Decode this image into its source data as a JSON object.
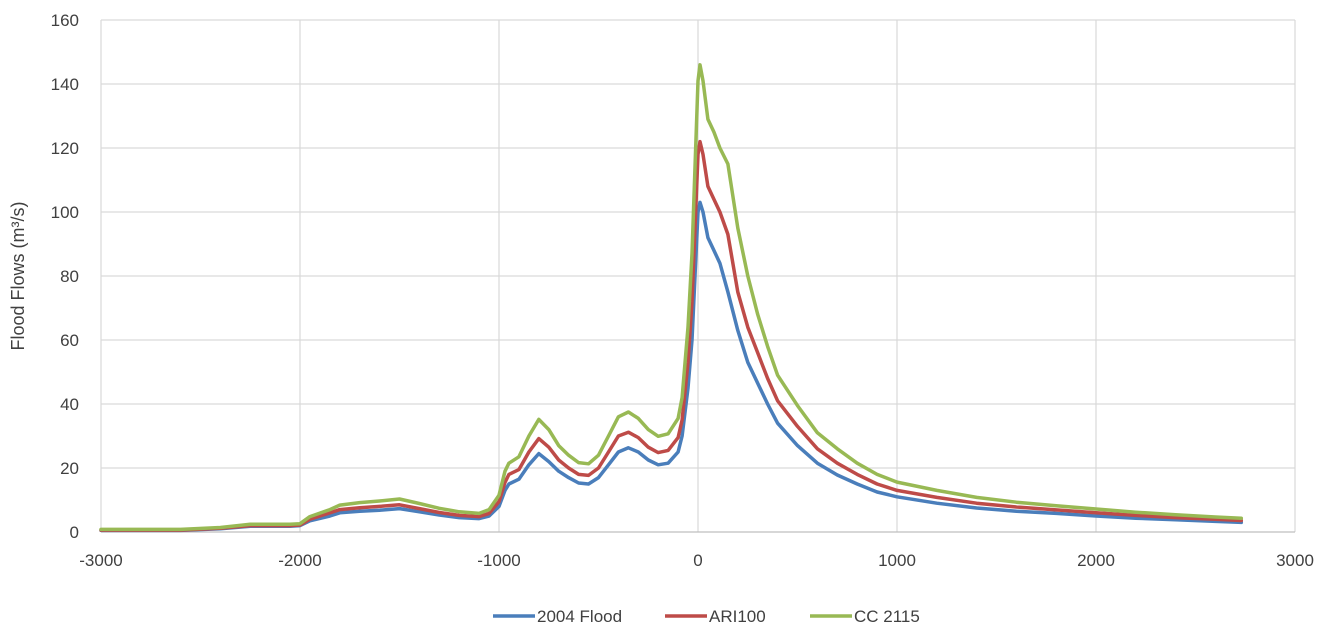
{
  "chart_data": {
    "type": "line",
    "title": "",
    "xlabel": "",
    "ylabel": "Flood Flows (m³/s)",
    "xlim": [
      -3000,
      3000
    ],
    "ylim": [
      0,
      160
    ],
    "x_ticks": [
      -3000,
      -2000,
      -1000,
      0,
      1000,
      2000,
      3000
    ],
    "y_ticks": [
      0,
      20,
      40,
      60,
      80,
      100,
      120,
      140,
      160
    ],
    "grid": true,
    "legend_position": "bottom",
    "series": [
      {
        "name": "2004 Flood",
        "color": "#4a7ebb",
        "points": [
          [
            -3000,
            0.5
          ],
          [
            -2600,
            0.5
          ],
          [
            -2400,
            1
          ],
          [
            -2250,
            1.8
          ],
          [
            -2050,
            1.8
          ],
          [
            -2000,
            2
          ],
          [
            -1950,
            3.5
          ],
          [
            -1850,
            5
          ],
          [
            -1800,
            6
          ],
          [
            -1700,
            6.5
          ],
          [
            -1600,
            6.8
          ],
          [
            -1500,
            7.3
          ],
          [
            -1400,
            6.3
          ],
          [
            -1300,
            5.3
          ],
          [
            -1200,
            4.5
          ],
          [
            -1100,
            4.2
          ],
          [
            -1050,
            5
          ],
          [
            -1000,
            8
          ],
          [
            -970,
            13
          ],
          [
            -950,
            15
          ],
          [
            -900,
            16.5
          ],
          [
            -850,
            21
          ],
          [
            -800,
            24.5
          ],
          [
            -750,
            22
          ],
          [
            -700,
            19
          ],
          [
            -650,
            17
          ],
          [
            -600,
            15.3
          ],
          [
            -550,
            15
          ],
          [
            -500,
            17
          ],
          [
            -450,
            21
          ],
          [
            -400,
            25
          ],
          [
            -350,
            26.3
          ],
          [
            -300,
            25
          ],
          [
            -250,
            22.5
          ],
          [
            -200,
            21
          ],
          [
            -150,
            21.5
          ],
          [
            -100,
            25
          ],
          [
            -80,
            30
          ],
          [
            -50,
            45
          ],
          [
            -30,
            60
          ],
          [
            -15,
            80
          ],
          [
            0,
            100
          ],
          [
            10,
            103
          ],
          [
            25,
            100
          ],
          [
            50,
            92
          ],
          [
            80,
            88
          ],
          [
            110,
            84
          ],
          [
            150,
            75
          ],
          [
            200,
            63
          ],
          [
            250,
            53
          ],
          [
            300,
            46.5
          ],
          [
            350,
            40
          ],
          [
            400,
            34
          ],
          [
            500,
            27
          ],
          [
            600,
            21.5
          ],
          [
            700,
            17.8
          ],
          [
            800,
            15
          ],
          [
            900,
            12.5
          ],
          [
            1000,
            11
          ],
          [
            1200,
            9
          ],
          [
            1400,
            7.5
          ],
          [
            1600,
            6.5
          ],
          [
            1800,
            5.8
          ],
          [
            2000,
            5
          ],
          [
            2200,
            4.3
          ],
          [
            2400,
            3.8
          ],
          [
            2600,
            3.3
          ],
          [
            2730,
            3
          ]
        ]
      },
      {
        "name": "ARI100",
        "color": "#be4b48",
        "points": [
          [
            -3000,
            0.6
          ],
          [
            -2600,
            0.6
          ],
          [
            -2400,
            1.2
          ],
          [
            -2250,
            2
          ],
          [
            -2050,
            2
          ],
          [
            -2000,
            2.2
          ],
          [
            -1950,
            4
          ],
          [
            -1850,
            6
          ],
          [
            -1800,
            7
          ],
          [
            -1700,
            7.6
          ],
          [
            -1600,
            8
          ],
          [
            -1500,
            8.5
          ],
          [
            -1400,
            7.3
          ],
          [
            -1300,
            6.1
          ],
          [
            -1200,
            5.2
          ],
          [
            -1100,
            4.8
          ],
          [
            -1050,
            5.8
          ],
          [
            -1000,
            9.5
          ],
          [
            -970,
            15.5
          ],
          [
            -950,
            18
          ],
          [
            -900,
            19.5
          ],
          [
            -850,
            25
          ],
          [
            -800,
            29.2
          ],
          [
            -750,
            26.5
          ],
          [
            -700,
            22.5
          ],
          [
            -650,
            20
          ],
          [
            -600,
            18
          ],
          [
            -550,
            17.7
          ],
          [
            -500,
            20
          ],
          [
            -450,
            25
          ],
          [
            -400,
            30
          ],
          [
            -350,
            31.2
          ],
          [
            -300,
            29.5
          ],
          [
            -250,
            26.5
          ],
          [
            -200,
            24.8
          ],
          [
            -150,
            25.5
          ],
          [
            -100,
            29.5
          ],
          [
            -80,
            35
          ],
          [
            -50,
            53
          ],
          [
            -30,
            72
          ],
          [
            -15,
            95
          ],
          [
            0,
            118
          ],
          [
            10,
            122
          ],
          [
            25,
            118
          ],
          [
            50,
            108
          ],
          [
            80,
            104
          ],
          [
            110,
            100
          ],
          [
            150,
            93
          ],
          [
            200,
            75
          ],
          [
            250,
            64
          ],
          [
            300,
            56
          ],
          [
            350,
            48
          ],
          [
            400,
            41
          ],
          [
            500,
            33
          ],
          [
            600,
            26
          ],
          [
            700,
            21.5
          ],
          [
            800,
            18
          ],
          [
            900,
            15
          ],
          [
            1000,
            13
          ],
          [
            1200,
            10.8
          ],
          [
            1400,
            9
          ],
          [
            1600,
            7.8
          ],
          [
            1800,
            6.9
          ],
          [
            2000,
            6
          ],
          [
            2200,
            5.2
          ],
          [
            2400,
            4.5
          ],
          [
            2600,
            4
          ],
          [
            2730,
            3.6
          ]
        ]
      },
      {
        "name": "CC 2115",
        "color": "#98b954",
        "points": [
          [
            -3000,
            0.8
          ],
          [
            -2600,
            0.8
          ],
          [
            -2400,
            1.4
          ],
          [
            -2250,
            2.4
          ],
          [
            -2050,
            2.4
          ],
          [
            -2000,
            2.6
          ],
          [
            -1950,
            4.8
          ],
          [
            -1850,
            7
          ],
          [
            -1800,
            8.4
          ],
          [
            -1700,
            9.2
          ],
          [
            -1600,
            9.7
          ],
          [
            -1500,
            10.3
          ],
          [
            -1400,
            8.9
          ],
          [
            -1300,
            7.4
          ],
          [
            -1200,
            6.3
          ],
          [
            -1100,
            5.8
          ],
          [
            -1050,
            7
          ],
          [
            -1000,
            11.5
          ],
          [
            -970,
            19
          ],
          [
            -950,
            21.5
          ],
          [
            -900,
            23.5
          ],
          [
            -850,
            30
          ],
          [
            -800,
            35.2
          ],
          [
            -750,
            32
          ],
          [
            -700,
            27
          ],
          [
            -650,
            24
          ],
          [
            -600,
            21.7
          ],
          [
            -550,
            21.3
          ],
          [
            -500,
            24
          ],
          [
            -450,
            30
          ],
          [
            -400,
            36
          ],
          [
            -350,
            37.5
          ],
          [
            -300,
            35.5
          ],
          [
            -250,
            32
          ],
          [
            -200,
            29.9
          ],
          [
            -150,
            30.7
          ],
          [
            -100,
            35.5
          ],
          [
            -80,
            42
          ],
          [
            -50,
            64
          ],
          [
            -30,
            87
          ],
          [
            -15,
            114
          ],
          [
            0,
            141
          ],
          [
            10,
            146
          ],
          [
            25,
            141
          ],
          [
            50,
            129
          ],
          [
            80,
            125
          ],
          [
            110,
            120
          ],
          [
            150,
            115
          ],
          [
            200,
            95
          ],
          [
            250,
            80
          ],
          [
            300,
            68
          ],
          [
            350,
            58
          ],
          [
            400,
            49
          ],
          [
            500,
            39.5
          ],
          [
            600,
            31
          ],
          [
            700,
            26
          ],
          [
            800,
            21.5
          ],
          [
            900,
            18
          ],
          [
            1000,
            15.6
          ],
          [
            1200,
            13
          ],
          [
            1400,
            10.8
          ],
          [
            1600,
            9.3
          ],
          [
            1800,
            8.2
          ],
          [
            2000,
            7.2
          ],
          [
            2200,
            6.2
          ],
          [
            2400,
            5.4
          ],
          [
            2600,
            4.7
          ],
          [
            2730,
            4.3
          ]
        ]
      }
    ]
  }
}
